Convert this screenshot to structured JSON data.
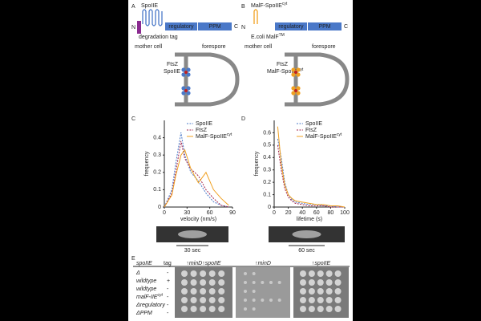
{
  "panels": {
    "A": {
      "letter": "A",
      "protein": "SpoIIE",
      "n": "N",
      "c": "C",
      "tag": "degradation tag",
      "reg": "regulatory",
      "ppm": "PPM",
      "mother": "mother cell",
      "fore": "forespore",
      "ftsz": "FtsZ",
      "prot2": "SpoIIE"
    },
    "B": {
      "letter": "B",
      "protein": "MalF-SpoIIE",
      "protein_sup": "cyt",
      "n": "N",
      "c": "C",
      "tag": "E.coli MalF",
      "tag_sup": "TM",
      "reg": "regulatory",
      "ppm": "PPM",
      "mother": "mother cell",
      "fore": "forespore",
      "ftsz": "FtsZ",
      "prot2": "MalF-SpoIIE",
      "prot2_sup": "cyt"
    },
    "kymo": [
      "30 sec",
      "60 sec"
    ],
    "E": {
      "letter": "E",
      "col1": "spoIIE",
      "col2": "tag",
      "plates": [
        "↑minD↑spoIIE",
        "↑minD",
        "↑spoIIE"
      ],
      "rows": [
        [
          "Δ",
          "-"
        ],
        [
          "wildtype",
          "+"
        ],
        [
          "wildtype",
          "-"
        ],
        [
          "malF-IIE",
          "-"
        ],
        [
          "Δregulatory",
          "-"
        ],
        [
          "ΔPPM",
          "-"
        ]
      ],
      "row_sup": "cyt"
    }
  },
  "chart_data": [
    {
      "type": "line",
      "letter": "C",
      "xlabel": "velocity (nm/s)",
      "ylabel": "frequency",
      "xlim": [
        0,
        90
      ],
      "xticks": [
        0,
        30,
        60,
        90
      ],
      "ylim": [
        0,
        0.5
      ],
      "yticks": [
        0,
        0.1,
        0.2,
        0.3,
        0.4
      ],
      "x": [
        0,
        10,
        15,
        22,
        27,
        35,
        45,
        55,
        65,
        75,
        85
      ],
      "series": [
        {
          "name": "SpoIIE",
          "color": "#4a78c8",
          "dash": true,
          "values": [
            0,
            0.1,
            0.25,
            0.43,
            0.3,
            0.2,
            0.15,
            0.08,
            0.03,
            0.01,
            0
          ]
        },
        {
          "name": "FtsZ",
          "color": "#a0224a",
          "dash": true,
          "values": [
            0,
            0.08,
            0.2,
            0.38,
            0.28,
            0.22,
            0.18,
            0.1,
            0.05,
            0.01,
            0
          ]
        },
        {
          "name": "MalF-SpoIIE",
          "name_sup": "cyt",
          "color": "#f0a020",
          "dash": false,
          "values": [
            0,
            0.07,
            0.18,
            0.3,
            0.33,
            0.22,
            0.14,
            0.2,
            0.1,
            0.05,
            0.01
          ]
        }
      ]
    },
    {
      "type": "line",
      "letter": "D",
      "xlabel": "lifetime (s)",
      "ylabel": "frequency",
      "xlim": [
        0,
        100
      ],
      "xticks": [
        0,
        20,
        40,
        60,
        80,
        100
      ],
      "ylim": [
        0,
        0.7
      ],
      "yticks": [
        0,
        0.1,
        0.2,
        0.3,
        0.4,
        0.5,
        0.6
      ],
      "x": [
        5,
        10,
        15,
        20,
        25,
        30,
        40,
        50,
        60,
        70,
        80,
        90,
        100
      ],
      "series": [
        {
          "name": "SpoIIE",
          "color": "#4a78c8",
          "dash": true,
          "values": [
            0.55,
            0.4,
            0.2,
            0.1,
            0.06,
            0.04,
            0.03,
            0.02,
            0.02,
            0.01,
            0.01,
            0,
            0
          ]
        },
        {
          "name": "FtsZ",
          "color": "#a0224a",
          "dash": true,
          "values": [
            0.5,
            0.3,
            0.15,
            0.08,
            0.05,
            0.03,
            0.02,
            0.01,
            0.01,
            0.01,
            0,
            0,
            0
          ]
        },
        {
          "name": "MalF-SpoIIE",
          "name_sup": "cyt",
          "color": "#f0a020",
          "dash": false,
          "values": [
            0.65,
            0.35,
            0.18,
            0.1,
            0.07,
            0.05,
            0.04,
            0.03,
            0.02,
            0.02,
            0.01,
            0.01,
            0
          ]
        }
      ]
    }
  ]
}
